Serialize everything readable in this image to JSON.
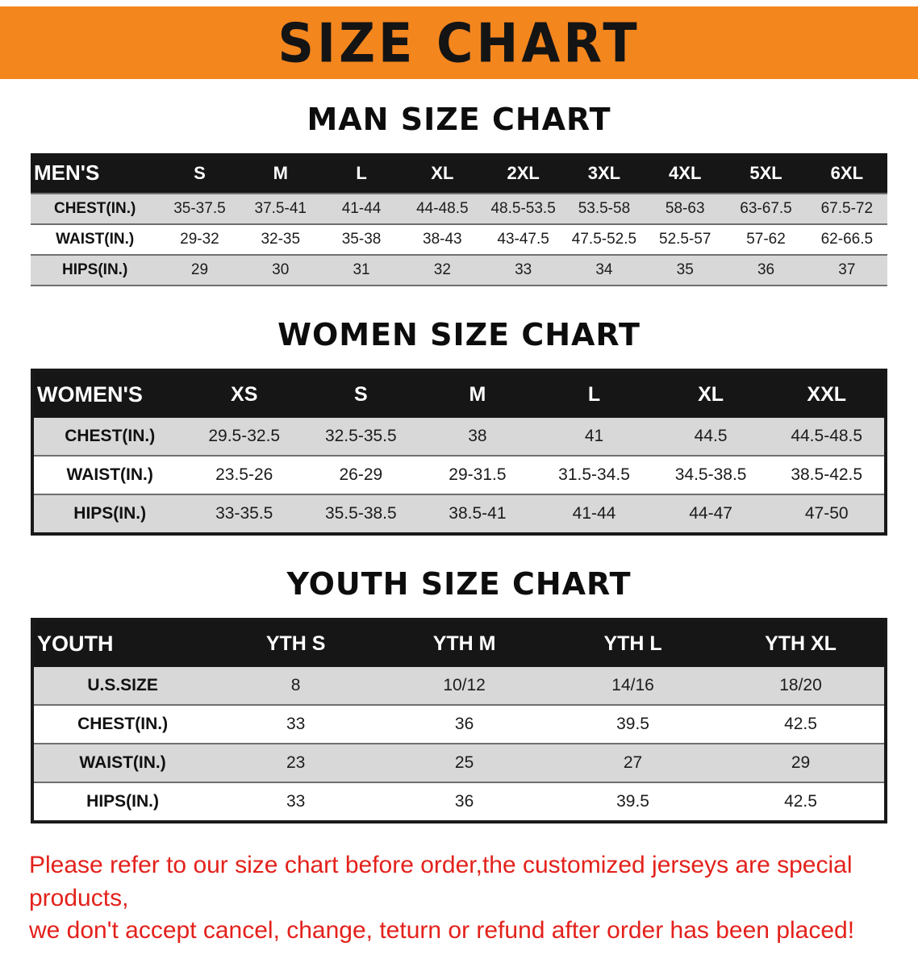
{
  "banner": {
    "title": "SIZE CHART"
  },
  "tables": [
    {
      "id": "men",
      "title": "MAN SIZE CHART",
      "header_label": "MEN'S",
      "columns": [
        "S",
        "M",
        "L",
        "XL",
        "2XL",
        "3XL",
        "4XL",
        "5XL",
        "6XL"
      ],
      "rows": [
        {
          "label": "CHEST(IN.)",
          "values": [
            "35-37.5",
            "37.5-41",
            "41-44",
            "44-48.5",
            "48.5-53.5",
            "53.5-58",
            "58-63",
            "63-67.5",
            "67.5-72"
          ]
        },
        {
          "label": "WAIST(IN.)",
          "values": [
            "29-32",
            "32-35",
            "35-38",
            "38-43",
            "43-47.5",
            "47.5-52.5",
            "52.5-57",
            "57-62",
            "62-66.5"
          ]
        },
        {
          "label": "HIPS(IN.)",
          "values": [
            "29",
            "30",
            "31",
            "32",
            "33",
            "34",
            "35",
            "36",
            "37"
          ]
        }
      ]
    },
    {
      "id": "women",
      "title": "WOMEN SIZE CHART",
      "header_label": "WOMEN'S",
      "columns": [
        "XS",
        "S",
        "M",
        "L",
        "XL",
        "XXL"
      ],
      "rows": [
        {
          "label": "CHEST(IN.)",
          "values": [
            "29.5-32.5",
            "32.5-35.5",
            "38",
            "41",
            "44.5",
            "44.5-48.5"
          ]
        },
        {
          "label": "WAIST(IN.)",
          "values": [
            "23.5-26",
            "26-29",
            "29-31.5",
            "31.5-34.5",
            "34.5-38.5",
            "38.5-42.5"
          ]
        },
        {
          "label": "HIPS(IN.)",
          "values": [
            "33-35.5",
            "35.5-38.5",
            "38.5-41",
            "41-44",
            "44-47",
            "47-50"
          ]
        }
      ]
    },
    {
      "id": "youth",
      "title": "YOUTH SIZE CHART",
      "header_label": "YOUTH",
      "columns": [
        "YTH S",
        "YTH M",
        "YTH L",
        "YTH XL"
      ],
      "rows": [
        {
          "label": "U.S.SIZE",
          "values": [
            "8",
            "10/12",
            "14/16",
            "18/20"
          ]
        },
        {
          "label": "CHEST(IN.)",
          "values": [
            "33",
            "36",
            "39.5",
            "42.5"
          ]
        },
        {
          "label": "WAIST(IN.)",
          "values": [
            "23",
            "25",
            "27",
            "29"
          ]
        },
        {
          "label": "HIPS(IN.)",
          "values": [
            "33",
            "36",
            "39.5",
            "42.5"
          ]
        }
      ]
    }
  ],
  "disclaimer": {
    "lines": [
      "Please refer to our size chart before order,the customized jerseys are special products,",
      "we don't accept cancel, change, teturn or refund after order has been placed!"
    ]
  },
  "colors": {
    "banner_bg": "#F4861E",
    "banner_text": "#141414",
    "table_header_bg": "#161616",
    "table_header_text": "#FFFFFF",
    "row_stripe_bg": "#D8D8D8",
    "disclaimer_text": "#E3211B"
  }
}
